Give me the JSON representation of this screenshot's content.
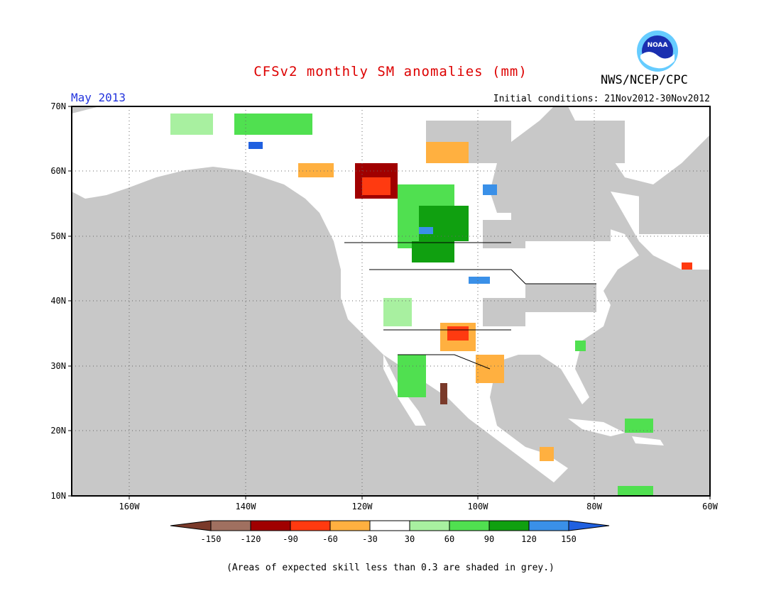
{
  "header": {
    "title": "CFSv2 monthly SM anomalies (mm)",
    "agency": "NWS/NCEP/CPC",
    "logo_text": "NOAA",
    "valid_month": "May 2013",
    "initial_conditions": "Initial conditions: 21Nov2012-30Nov2012"
  },
  "map": {
    "lon_ticks": [
      "160W",
      "140W",
      "120W",
      "100W",
      "80W",
      "60W"
    ],
    "lat_ticks": [
      "70N",
      "60N",
      "50N",
      "40N",
      "30N",
      "20N",
      "10N"
    ],
    "land_color": "#ffffff",
    "low_skill_color": "#c8c8c8"
  },
  "colorbar": {
    "labels": [
      "-150",
      "-120",
      "-90",
      "-60",
      "-30",
      "30",
      "60",
      "90",
      "120",
      "150"
    ],
    "colors": [
      "#7a3a2a",
      "#a07060",
      "#a00000",
      "#ff3a10",
      "#ffb040",
      "#ffffff",
      "#a8f0a0",
      "#50e050",
      "#10a010",
      "#3a90e8",
      "#2060e0"
    ]
  },
  "footnote": "(Areas of expected skill less than 0.3 are shaded in grey.)"
}
